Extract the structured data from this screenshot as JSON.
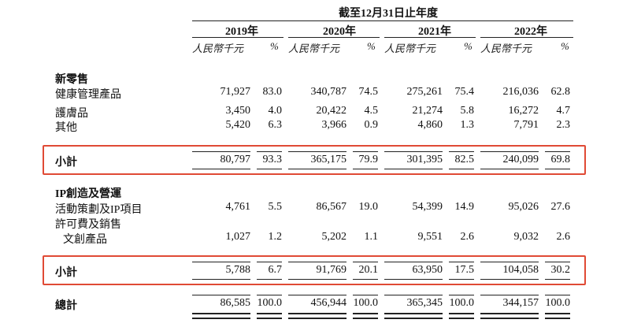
{
  "table": {
    "period_header": "截至12月31日止年度",
    "years": [
      "2019年",
      "2020年",
      "2021年",
      "2022年"
    ],
    "unit_amount": "人民幣千元",
    "unit_pct": "%",
    "sections": {
      "new_retail": {
        "title": "新零售",
        "rows": [
          {
            "label": "健康管理產品",
            "values": [
              "71,927",
              "83.0",
              "340,787",
              "74.5",
              "275,261",
              "75.4",
              "216,036",
              "62.8"
            ]
          },
          {
            "label": "護膚品",
            "values": [
              "3,450",
              "4.0",
              "20,422",
              "4.5",
              "21,274",
              "5.8",
              "16,272",
              "4.7"
            ]
          },
          {
            "label": "其他",
            "values": [
              "5,420",
              "6.3",
              "3,966",
              "0.9",
              "4,860",
              "1.3",
              "7,791",
              "2.3"
            ]
          }
        ],
        "subtotal": {
          "label": "小計",
          "values": [
            "80,797",
            "93.3",
            "365,175",
            "79.9",
            "301,395",
            "82.5",
            "240,099",
            "69.8"
          ]
        }
      },
      "ip_ops": {
        "title": "IP創造及營運",
        "rows": [
          {
            "label": "活動策劃及IP項目",
            "values": [
              "4,761",
              "5.5",
              "86,567",
              "19.0",
              "54,399",
              "14.9",
              "95,026",
              "27.6"
            ]
          },
          {
            "label": "許可費及銷售",
            "values": []
          },
          {
            "label": "文創產品",
            "values": [
              "1,027",
              "1.2",
              "5,202",
              "1.1",
              "9,551",
              "2.6",
              "9,032",
              "2.6"
            ]
          }
        ],
        "subtotal": {
          "label": "小計",
          "values": [
            "5,788",
            "6.7",
            "91,769",
            "20.1",
            "63,950",
            "17.5",
            "104,058",
            "30.2"
          ]
        }
      }
    },
    "total": {
      "label": "總計",
      "values": [
        "86,585",
        "100.0",
        "456,944",
        "100.0",
        "365,345",
        "100.0",
        "344,157",
        "100.0"
      ]
    },
    "highlight_color": "#e04a35"
  }
}
